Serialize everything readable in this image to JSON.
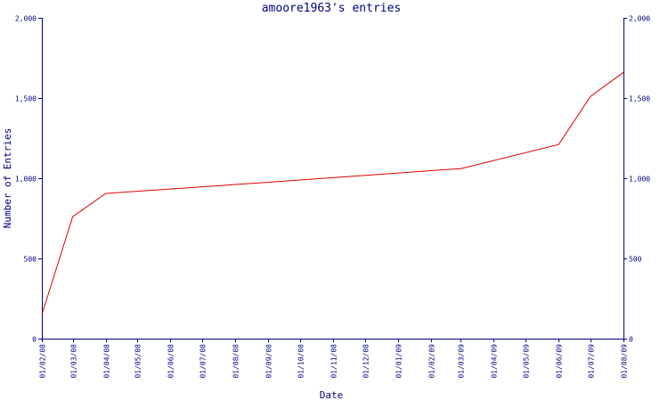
{
  "chart_data": {
    "type": "line",
    "title": "amoore1963's entries",
    "xlabel": "Date",
    "ylabel": "Number of Entries",
    "x_tick_labels": [
      "01/02/08",
      "01/03/08",
      "01/04/08",
      "01/05/08",
      "01/06/08",
      "01/07/08",
      "01/08/08",
      "01/09/08",
      "01/10/08",
      "01/11/08",
      "01/12/08",
      "01/01/09",
      "01/02/09",
      "01/03/09",
      "01/04/09",
      "01/05/09",
      "01/06/09",
      "01/07/09",
      "01/08/09"
    ],
    "y_tick_labels": [
      "0",
      "500",
      "1,000",
      "1,500",
      "2,000"
    ],
    "y_ticks": [
      0,
      500,
      1000,
      1500,
      2000
    ],
    "ylim": [
      0,
      2000
    ],
    "xlim": [
      "01/02/08",
      "01/08/09"
    ],
    "grid": false,
    "legend": "none",
    "line_color": "#e00000",
    "axis_color": "#000080",
    "series": [
      {
        "x": [
          "01/02/08",
          "01/03/08",
          "01/04/08",
          "01/09/08",
          "01/03/09",
          "01/06/09",
          "01/07/09",
          "01/08/09"
        ],
        "values": [
          150,
          760,
          905,
          975,
          1060,
          1210,
          1510,
          1660
        ]
      }
    ]
  }
}
